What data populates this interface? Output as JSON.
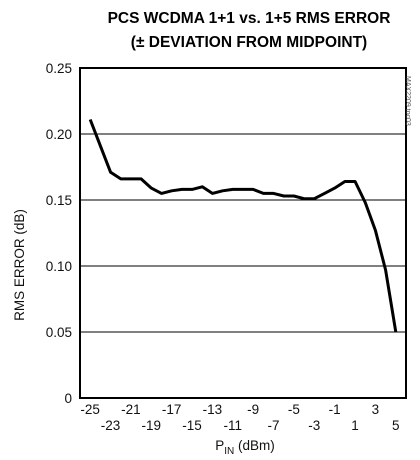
{
  "chart_data": {
    "type": "line",
    "title": [
      "PCS WCDMA 1+1 vs. 1+5 RMS ERROR",
      "(± DEVIATION FROM MIDPOINT)"
    ],
    "ylabel": "RMS ERROR (dB)",
    "xlabel": {
      "main": "P",
      "sub": "IN",
      "unit": " (dBm)"
    },
    "watermark": "MAX2209 toc03",
    "xlim": [
      -26,
      6
    ],
    "ylim": [
      0,
      0.25
    ],
    "y_ticks": [
      "0",
      "0.05",
      "0.10",
      "0.15",
      "0.20",
      "0.25"
    ],
    "y_tick_values": [
      0,
      0.05,
      0.1,
      0.15,
      0.2,
      0.25
    ],
    "x_ticks_row1": [
      "-25",
      "-21",
      "-17",
      "-13",
      "-9",
      "-5",
      "-1",
      "3"
    ],
    "x_ticks_row1_values": [
      -25,
      -21,
      -17,
      -13,
      -9,
      -5,
      -1,
      3
    ],
    "x_ticks_row2": [
      "-23",
      "-19",
      "-15",
      "-11",
      "-7",
      "-3",
      "1",
      "5"
    ],
    "x_ticks_row2_values": [
      -23,
      -19,
      -15,
      -11,
      -7,
      -3,
      1,
      5
    ],
    "grid": "horizontal",
    "series": [
      {
        "x": [
          -25,
          -24,
          -23,
          -22,
          -21,
          -20,
          -19,
          -18,
          -17,
          -16,
          -15,
          -14,
          -13,
          -12,
          -11,
          -10,
          -9,
          -8,
          -7,
          -6,
          -5,
          -4,
          -3,
          -2,
          -1,
          0,
          1,
          2,
          3,
          4,
          5
        ],
        "y": [
          0.211,
          0.191,
          0.171,
          0.166,
          0.166,
          0.166,
          0.159,
          0.155,
          0.157,
          0.158,
          0.158,
          0.16,
          0.155,
          0.157,
          0.158,
          0.158,
          0.158,
          0.155,
          0.155,
          0.153,
          0.153,
          0.151,
          0.151,
          0.155,
          0.159,
          0.164,
          0.164,
          0.148,
          0.127,
          0.097,
          0.05
        ]
      }
    ]
  }
}
